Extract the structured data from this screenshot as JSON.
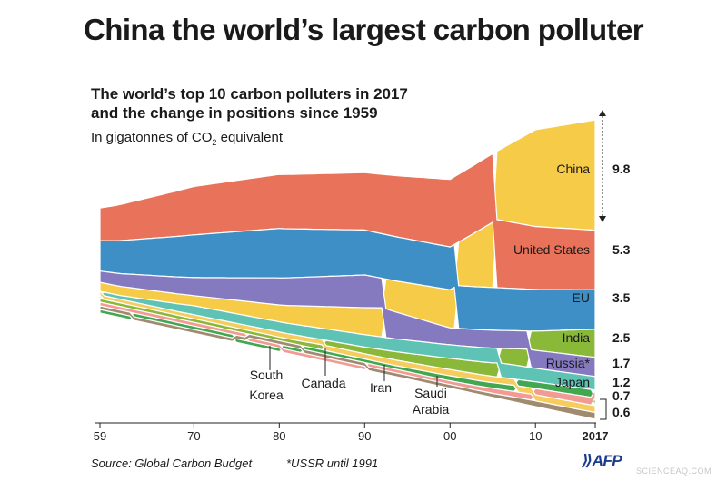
{
  "title": "China the world’s largest carbon polluter",
  "subtitle_line1": "The world’s top 10 carbon polluters in 2017",
  "subtitle_line2": "and the change in positions since 1959",
  "unit_prefix": "In gigatonnes of CO",
  "unit_sub": "2",
  "unit_suffix": " equivalent",
  "source": "Source: Global Carbon Budget",
  "footnote": "*USSR until 1991",
  "logo": "AFP",
  "watermark": "SCIENCEAQ.COM",
  "chart_data": {
    "type": "area",
    "x_ticks": [
      "59",
      "70",
      "80",
      "90",
      "00",
      "10",
      "2017"
    ],
    "x_tick_years": [
      1959,
      1970,
      1980,
      1990,
      2000,
      2010,
      2017
    ],
    "x_range": [
      1959,
      2017
    ],
    "series": [
      {
        "name": "China",
        "value_2017": "9.8",
        "color": "#f5cb47",
        "points": [
          [
            1959,
            0.8
          ],
          [
            1970,
            0.9
          ],
          [
            1980,
            1.5
          ],
          [
            1990,
            2.4
          ],
          [
            2000,
            3.4
          ],
          [
            2005,
            5.8
          ],
          [
            2010,
            8.6
          ],
          [
            2017,
            9.8
          ]
        ]
      },
      {
        "name": "United States",
        "value_2017": "5.3",
        "color": "#e8725a",
        "points": [
          [
            1959,
            2.9
          ],
          [
            1970,
            4.3
          ],
          [
            1980,
            4.8
          ],
          [
            1990,
            5.1
          ],
          [
            2000,
            6.0
          ],
          [
            2005,
            6.1
          ],
          [
            2010,
            5.6
          ],
          [
            2017,
            5.3
          ]
        ]
      },
      {
        "name": "EU",
        "value_2017": "3.5",
        "color": "#3d8fc6",
        "points": [
          [
            1959,
            2.7
          ],
          [
            1970,
            3.8
          ],
          [
            1980,
            4.4
          ],
          [
            1990,
            4.0
          ],
          [
            2000,
            3.8
          ],
          [
            2005,
            3.8
          ],
          [
            2010,
            3.7
          ],
          [
            2017,
            3.5
          ]
        ]
      },
      {
        "name": "India",
        "value_2017": "2.5",
        "color": "#8ab93a",
        "points": [
          [
            1959,
            0.1
          ],
          [
            1970,
            0.2
          ],
          [
            1980,
            0.3
          ],
          [
            1990,
            0.6
          ],
          [
            2000,
            1.0
          ],
          [
            2005,
            1.2
          ],
          [
            2010,
            1.7
          ],
          [
            2017,
            2.5
          ]
        ]
      },
      {
        "name": "Russia*",
        "value_2017": "1.7",
        "color": "#8579c0",
        "points": [
          [
            1959,
            1.0
          ],
          [
            1970,
            1.6
          ],
          [
            1980,
            2.4
          ],
          [
            1990,
            2.9
          ],
          [
            2000,
            1.5
          ],
          [
            2005,
            1.6
          ],
          [
            2010,
            1.6
          ],
          [
            2017,
            1.7
          ]
        ]
      },
      {
        "name": "Japan",
        "value_2017": "1.2",
        "color": "#5ec2b4",
        "points": [
          [
            1959,
            0.2
          ],
          [
            1970,
            0.8
          ],
          [
            1980,
            0.9
          ],
          [
            1990,
            1.1
          ],
          [
            2000,
            1.2
          ],
          [
            2005,
            1.3
          ],
          [
            2010,
            1.2
          ],
          [
            2017,
            1.2
          ]
        ]
      },
      {
        "name": "South Korea",
        "value_2017": "0.7",
        "color": "#41a851",
        "points": [
          [
            1959,
            0.0
          ],
          [
            1970,
            0.05
          ],
          [
            1980,
            0.13
          ],
          [
            1990,
            0.25
          ],
          [
            2000,
            0.45
          ],
          [
            2005,
            0.5
          ],
          [
            2010,
            0.6
          ],
          [
            2017,
            0.7
          ]
        ]
      },
      {
        "name": "Iran",
        "value_2017": "0.7",
        "color": "#f29a93",
        "points": [
          [
            1959,
            0.02
          ],
          [
            1970,
            0.06
          ],
          [
            1980,
            0.13
          ],
          [
            1990,
            0.2
          ],
          [
            2000,
            0.33
          ],
          [
            2005,
            0.45
          ],
          [
            2010,
            0.55
          ],
          [
            2017,
            0.7
          ]
        ]
      },
      {
        "name": "Saudi Arabia",
        "value_2017": "0.6",
        "color": "#a08a70",
        "points": [
          [
            1959,
            0.01
          ],
          [
            1970,
            0.03
          ],
          [
            1980,
            0.15
          ],
          [
            1990,
            0.2
          ],
          [
            2000,
            0.27
          ],
          [
            2005,
            0.35
          ],
          [
            2010,
            0.5
          ],
          [
            2017,
            0.6
          ]
        ]
      },
      {
        "name": "Canada",
        "value_2017": "0.6",
        "color": "#f6cc5e",
        "points": [
          [
            1959,
            0.2
          ],
          [
            1970,
            0.35
          ],
          [
            1980,
            0.45
          ],
          [
            1990,
            0.46
          ],
          [
            2000,
            0.55
          ],
          [
            2005,
            0.56
          ],
          [
            2010,
            0.54
          ],
          [
            2017,
            0.6
          ]
        ]
      }
    ],
    "end_labels": [
      {
        "label": "China",
        "value": "9.8"
      },
      {
        "label": "United States",
        "value": "5.3"
      },
      {
        "label": "EU",
        "value": "3.5"
      },
      {
        "label": "India",
        "value": "2.5"
      },
      {
        "label": "Russia*",
        "value": "1.7"
      },
      {
        "label": "Japan",
        "value": "1.2"
      },
      {
        "label": "",
        "value": "0.7"
      },
      {
        "label": "",
        "value": "0.6"
      }
    ],
    "callouts": [
      "South Korea",
      "Canada",
      "Iran",
      "Saudi Arabia"
    ]
  }
}
